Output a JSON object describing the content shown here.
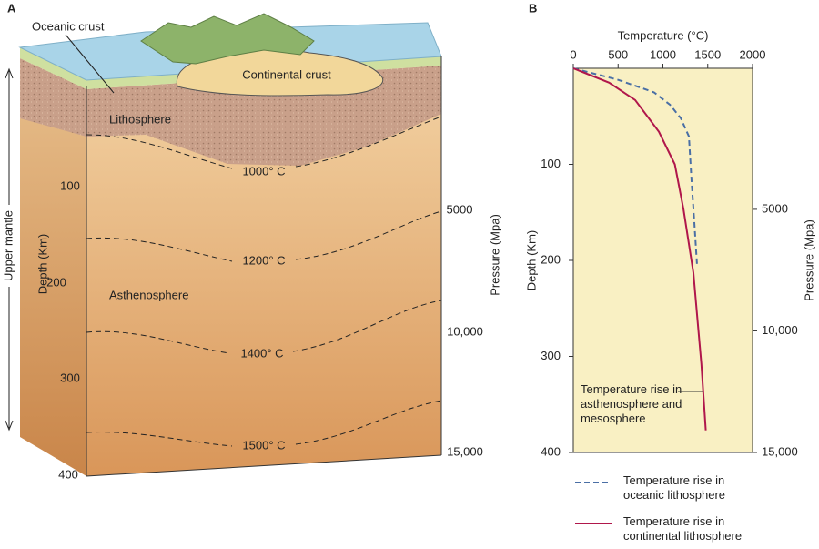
{
  "panel_a": {
    "label": "A",
    "oceanic_crust": "Oceanic crust",
    "continental_crust": "Continental crust",
    "lithosphere": "Lithosphere",
    "asthenosphere": "Asthenosphere",
    "upper_mantle": "Upper mantle",
    "depth_label": "Depth (Km)",
    "depth_ticks": [
      "100",
      "200",
      "300",
      "400"
    ],
    "pressure_label": "Pressure (Mpa)",
    "pressure_ticks": [
      "5000",
      "10,000",
      "15,000"
    ],
    "isotherms": [
      "1000° C",
      "1200° C",
      "1400° C",
      "1500° C"
    ]
  },
  "chart_data": {
    "type": "line",
    "panel_label": "B",
    "x_label": "Temperature (°C)",
    "y_label": "Depth (Km)",
    "y2_label": "Pressure (Mpa)",
    "xlim": [
      0,
      2000
    ],
    "xticks": [
      0,
      500,
      1000,
      1500,
      2000
    ],
    "ylim": [
      0,
      400
    ],
    "y_inverted": true,
    "yticks": [
      100,
      200,
      300,
      400
    ],
    "y2lim": [
      -800,
      15000
    ],
    "y2ticks": [
      5000,
      {
        "value": 10000,
        "label": "10,000"
      },
      {
        "value": 15000,
        "label": "15,000"
      }
    ],
    "annotation": "Temperature rise in asthenosphere and mesosphere",
    "series": [
      {
        "name": "Temperature rise in oceanic lithosphere",
        "color": "#4a6fa5",
        "dashed": true,
        "x": [
          0,
          500,
          900,
          1080,
          1200,
          1290,
          1320,
          1350,
          1380
        ],
        "values": [
          0,
          12,
          25,
          38,
          52,
          71,
          118,
          160,
          204
        ]
      },
      {
        "name": "Temperature rise in continental lithosphere",
        "color": "#b0174b",
        "dashed": false,
        "x": [
          0,
          400,
          690,
          955,
          1133,
          1230,
          1340,
          1429,
          1478
        ],
        "values": [
          0,
          15,
          33,
          66,
          100,
          147,
          213,
          308,
          377
        ]
      }
    ]
  }
}
